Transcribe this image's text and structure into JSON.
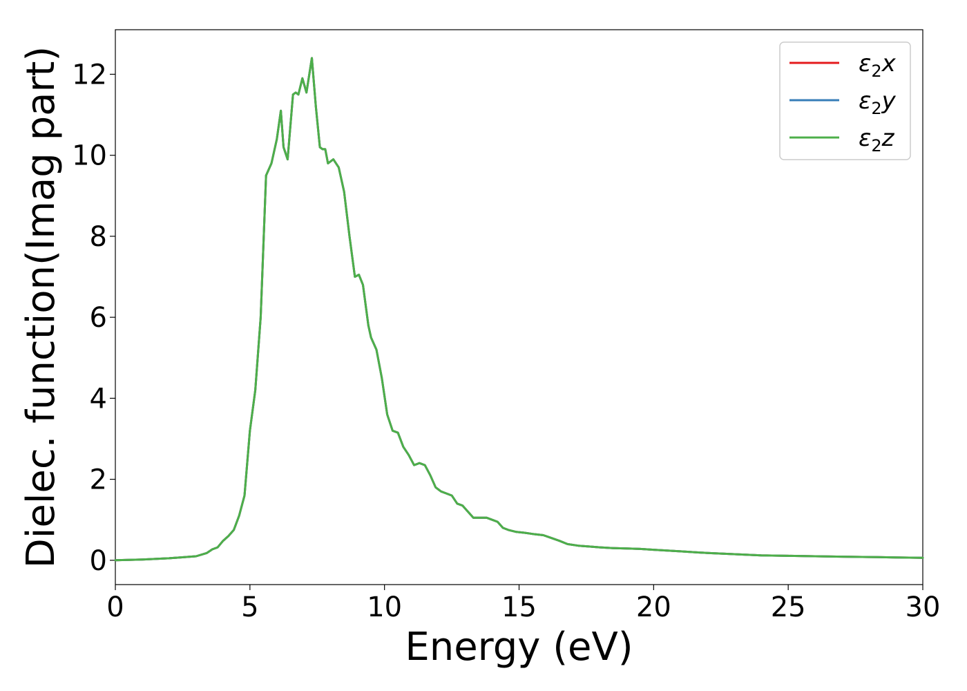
{
  "chart_data": {
    "type": "line",
    "title": "",
    "xlabel": "Energy (eV)",
    "ylabel": "Dielec. function(Imag part)",
    "xlim": [
      0,
      30
    ],
    "ylim": [
      -0.6,
      13.1
    ],
    "xticks": [
      0,
      5,
      10,
      15,
      20,
      25,
      30
    ],
    "yticks": [
      0,
      2,
      4,
      6,
      8,
      10,
      12
    ],
    "xtick_labels": [
      "0",
      "5",
      "10",
      "15",
      "20",
      "25",
      "30"
    ],
    "ytick_labels": [
      "0",
      "2",
      "4",
      "6",
      "8",
      "10",
      "12"
    ],
    "grid": false,
    "legend": {
      "placement": "top-right",
      "entries": [
        {
          "base": "ε",
          "sub": "2",
          "comp": "x",
          "color": "#e41a1c"
        },
        {
          "base": "ε",
          "sub": "2",
          "comp": "y",
          "color": "#377eb8"
        },
        {
          "base": "ε",
          "sub": "2",
          "comp": "z",
          "color": "#4daf4a"
        }
      ]
    },
    "x": [
      0,
      1,
      2,
      3,
      3.4,
      3.6,
      3.8,
      4.0,
      4.2,
      4.4,
      4.6,
      4.8,
      5.0,
      5.2,
      5.4,
      5.6,
      5.8,
      6.0,
      6.15,
      6.25,
      6.4,
      6.6,
      6.7,
      6.8,
      6.95,
      7.1,
      7.3,
      7.45,
      7.6,
      7.7,
      7.8,
      7.9,
      8.1,
      8.3,
      8.5,
      8.7,
      8.9,
      9.05,
      9.2,
      9.4,
      9.5,
      9.7,
      9.9,
      10.1,
      10.3,
      10.5,
      10.7,
      10.9,
      11.1,
      11.3,
      11.5,
      11.7,
      11.9,
      12.1,
      12.3,
      12.5,
      12.7,
      12.9,
      13.1,
      13.3,
      13.5,
      13.8,
      14.0,
      14.2,
      14.4,
      14.6,
      14.9,
      15.2,
      15.5,
      15.9,
      16.2,
      16.5,
      16.8,
      17.2,
      17.6,
      18.0,
      18.5,
      19.0,
      19.5,
      20.0,
      20.5,
      21.0,
      21.5,
      22.0,
      23.0,
      24.0,
      25.0,
      26.0,
      27.0,
      28.0,
      29.0,
      30.0
    ],
    "series": [
      {
        "name": "ε2x",
        "color": "#e41a1c",
        "values": [
          0.0,
          0.02,
          0.05,
          0.1,
          0.18,
          0.27,
          0.32,
          0.48,
          0.6,
          0.75,
          1.1,
          1.6,
          3.2,
          4.2,
          6.0,
          9.5,
          9.8,
          10.4,
          11.1,
          10.2,
          9.9,
          11.5,
          11.55,
          11.5,
          11.9,
          11.55,
          12.4,
          11.2,
          10.2,
          10.15,
          10.15,
          9.8,
          9.9,
          9.7,
          9.1,
          8.0,
          7.0,
          7.05,
          6.8,
          5.8,
          5.5,
          5.2,
          4.5,
          3.6,
          3.2,
          3.15,
          2.8,
          2.6,
          2.35,
          2.4,
          2.35,
          2.1,
          1.8,
          1.7,
          1.65,
          1.6,
          1.4,
          1.35,
          1.2,
          1.05,
          1.05,
          1.05,
          1.0,
          0.95,
          0.8,
          0.75,
          0.7,
          0.68,
          0.65,
          0.62,
          0.55,
          0.48,
          0.4,
          0.36,
          0.34,
          0.32,
          0.3,
          0.29,
          0.28,
          0.26,
          0.24,
          0.22,
          0.2,
          0.18,
          0.15,
          0.12,
          0.11,
          0.1,
          0.09,
          0.08,
          0.07,
          0.06
        ]
      },
      {
        "name": "ε2y",
        "color": "#377eb8",
        "values": [
          0.0,
          0.02,
          0.05,
          0.1,
          0.18,
          0.27,
          0.32,
          0.48,
          0.6,
          0.75,
          1.1,
          1.6,
          3.2,
          4.2,
          6.0,
          9.5,
          9.8,
          10.4,
          11.1,
          10.2,
          9.9,
          11.5,
          11.55,
          11.5,
          11.9,
          11.55,
          12.4,
          11.2,
          10.2,
          10.15,
          10.15,
          9.8,
          9.9,
          9.7,
          9.1,
          8.0,
          7.0,
          7.05,
          6.8,
          5.8,
          5.5,
          5.2,
          4.5,
          3.6,
          3.2,
          3.15,
          2.8,
          2.6,
          2.35,
          2.4,
          2.35,
          2.1,
          1.8,
          1.7,
          1.65,
          1.6,
          1.4,
          1.35,
          1.2,
          1.05,
          1.05,
          1.05,
          1.0,
          0.95,
          0.8,
          0.75,
          0.7,
          0.68,
          0.65,
          0.62,
          0.55,
          0.48,
          0.4,
          0.36,
          0.34,
          0.32,
          0.3,
          0.29,
          0.28,
          0.26,
          0.24,
          0.22,
          0.2,
          0.18,
          0.15,
          0.12,
          0.11,
          0.1,
          0.09,
          0.08,
          0.07,
          0.06
        ]
      },
      {
        "name": "ε2z",
        "color": "#4daf4a",
        "values": [
          0.0,
          0.02,
          0.05,
          0.1,
          0.18,
          0.27,
          0.32,
          0.48,
          0.6,
          0.75,
          1.1,
          1.6,
          3.2,
          4.2,
          6.0,
          9.5,
          9.8,
          10.4,
          11.1,
          10.2,
          9.9,
          11.5,
          11.55,
          11.5,
          11.9,
          11.55,
          12.4,
          11.2,
          10.2,
          10.15,
          10.15,
          9.8,
          9.9,
          9.7,
          9.1,
          8.0,
          7.0,
          7.05,
          6.8,
          5.8,
          5.5,
          5.2,
          4.5,
          3.6,
          3.2,
          3.15,
          2.8,
          2.6,
          2.35,
          2.4,
          2.35,
          2.1,
          1.8,
          1.7,
          1.65,
          1.6,
          1.4,
          1.35,
          1.2,
          1.05,
          1.05,
          1.05,
          1.0,
          0.95,
          0.8,
          0.75,
          0.7,
          0.68,
          0.65,
          0.62,
          0.55,
          0.48,
          0.4,
          0.36,
          0.34,
          0.32,
          0.3,
          0.29,
          0.28,
          0.26,
          0.24,
          0.22,
          0.2,
          0.18,
          0.15,
          0.12,
          0.11,
          0.1,
          0.09,
          0.08,
          0.07,
          0.06
        ]
      }
    ]
  }
}
